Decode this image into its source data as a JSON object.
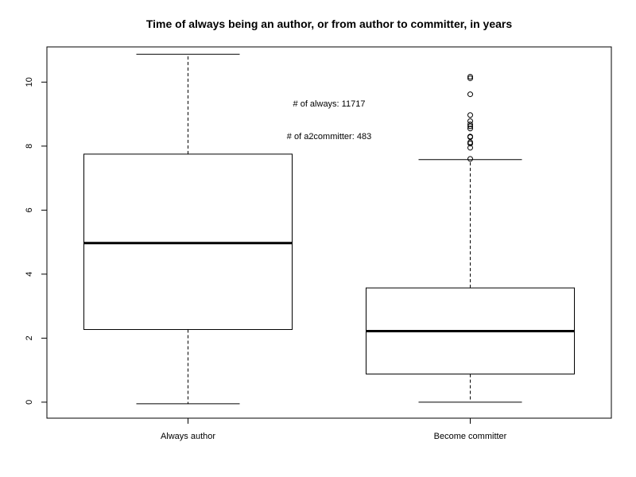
{
  "chart_data": {
    "type": "box",
    "title": "Time of always being an author, or from author to committer, in years",
    "xlabel": "",
    "ylabel": "",
    "ylim": [
      -0.5,
      11.1
    ],
    "yticks": [
      0,
      2,
      4,
      6,
      8,
      10
    ],
    "categories": [
      "Always author",
      "Become committer"
    ],
    "boxes": [
      {
        "category": "Always author",
        "whisker_low": -0.05,
        "q1": 2.27,
        "median": 4.97,
        "q3": 7.75,
        "whisker_high": 10.87,
        "outliers": []
      },
      {
        "category": "Become committer",
        "whisker_low": 0.0,
        "q1": 0.88,
        "median": 2.22,
        "q3": 3.57,
        "whisker_high": 7.58,
        "outliers": [
          7.6,
          7.95,
          8.08,
          8.12,
          8.28,
          8.3,
          8.55,
          8.62,
          8.68,
          8.78,
          8.97,
          9.62,
          10.12,
          10.17
        ]
      }
    ],
    "annotations": [
      "# of always: 11717",
      "# of a2committer: 483"
    ],
    "grid": false,
    "legend": "none"
  }
}
